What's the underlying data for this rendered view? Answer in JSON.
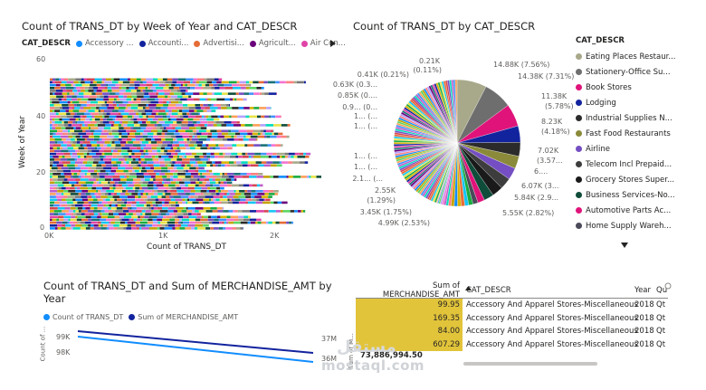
{
  "chart1": {
    "title": "Count of TRANS_DT by Week of Year and CAT_DESCR",
    "legend_key": "CAT_DESCR",
    "legend": [
      {
        "label": "Accessory ...",
        "color": "#118dff"
      },
      {
        "label": "Accounti...",
        "color": "#12239e"
      },
      {
        "label": "Advertisi...",
        "color": "#e66c37"
      },
      {
        "label": "Agricult...",
        "color": "#6b007b"
      },
      {
        "label": "Air Con...",
        "color": "#e044a7"
      }
    ],
    "legend_more_icon": "triangle-right-icon",
    "ylabel": "Week of Year",
    "xlabel": "Count of TRANS_DT",
    "yticks": [
      "60",
      "40",
      "20",
      "0"
    ],
    "xticks": [
      "0K",
      "1K",
      "2K"
    ]
  },
  "chart2": {
    "title": "Count of TRANS_DT by CAT_DESCR",
    "legend_key": "CAT_DESCR",
    "legend": [
      {
        "label": "Eating Places Restaur...",
        "color": "#a8a98a"
      },
      {
        "label": "Stationery-Office Su...",
        "color": "#6e6e6e"
      },
      {
        "label": "Book Stores",
        "color": "#e0137a"
      },
      {
        "label": "Lodging",
        "color": "#12239e"
      },
      {
        "label": "Industrial Supplies N...",
        "color": "#2b2b2b"
      },
      {
        "label": "Fast Food Restaurants",
        "color": "#8a8a3a"
      },
      {
        "label": "Airline",
        "color": "#744ec2"
      },
      {
        "label": "Telecom Incl Prepaid...",
        "color": "#3d3d3d"
      },
      {
        "label": "Grocery Stores Super...",
        "color": "#1a1a1a"
      },
      {
        "label": "Business Services-No...",
        "color": "#0f4c3a"
      },
      {
        "label": "Automotive Parts Ac...",
        "color": "#e0137a"
      },
      {
        "label": "Home Supply Wareh...",
        "color": "#4a4a5a"
      }
    ],
    "legend_more_icon": "triangle-down-icon",
    "labels": [
      "14.88K (7.56%)",
      "14.38K (7.31%)",
      "11.38K",
      "(5.78%)",
      "8.23K",
      "(4.18%)",
      "7.02K",
      "(3.57...",
      "6....",
      "6.07K (3...",
      "5.84K (2.9...",
      "5.55K (2.82%)",
      "4.99K (2.53%)",
      "3.45K (1.75%)",
      "2.55K",
      "(1.29%)",
      "2.1... (...",
      "1... (...",
      "1... (...",
      "1... (...",
      "1... (...",
      "0.9... (0...",
      "0.85K (0....",
      "0.63K (0.3...",
      "0.41K (0.21%)",
      "0.21K",
      "(0.11%)"
    ]
  },
  "chart3": {
    "title_line1": "Count of TRANS_DT and Sum of MERCHANDISE_AMT by",
    "title_line2": "Year",
    "legend": [
      {
        "label": "Count of TRANS_DT",
        "color": "#118dff"
      },
      {
        "label": "Sum of MERCHANDISE_AMT",
        "color": "#12239e"
      }
    ],
    "ylabel_left": "Count of ...",
    "ylabel_right": "Sum of M...",
    "yticks_left": [
      "99K",
      "98K"
    ],
    "yticks_right": [
      "37M",
      "36M"
    ]
  },
  "table": {
    "headers": [
      "Sum of MERCHANDISE_AMT",
      "CAT_DESCR",
      "Year",
      "Qu"
    ],
    "sort_icon": "sort-ascending-icon",
    "rows": [
      [
        "99.95",
        "Accessory And Apparel Stores-Miscellaneous",
        "2018",
        "Qt"
      ],
      [
        "169.35",
        "Accessory And Apparel Stores-Miscellaneous",
        "2018",
        "Qt"
      ],
      [
        "84.00",
        "Accessory And Apparel Stores-Miscellaneous",
        "2018",
        "Qt"
      ],
      [
        "607.29",
        "Accessory And Apparel Stores-Miscellaneous",
        "2018",
        "Qt"
      ]
    ],
    "total": "73,886,994.50"
  },
  "watermark": {
    "text": "mostaql.com",
    "logo": "مستقل"
  }
}
